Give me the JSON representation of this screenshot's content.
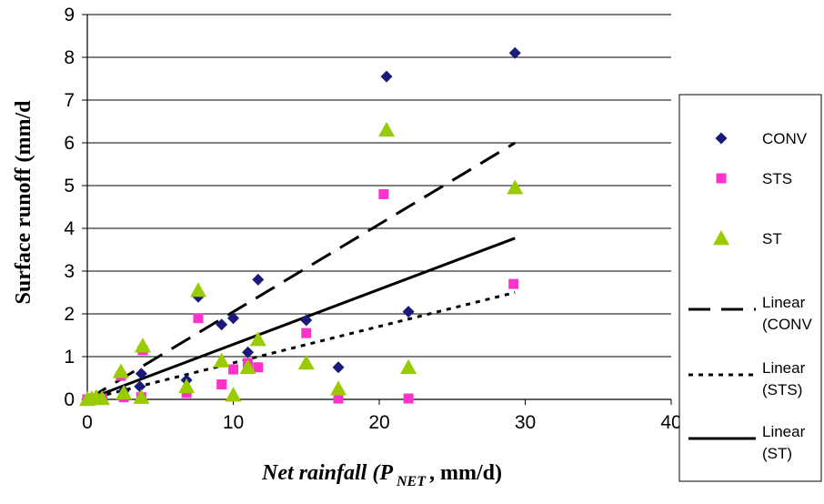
{
  "chart_data": {
    "type": "scatter",
    "title": "",
    "xlabel": {
      "main": "Net rainfall (P",
      "sub": "NET",
      "rest": ", mm/d)"
    },
    "ylabel": "Surface runoff (mm/d",
    "xlim": [
      0,
      40
    ],
    "ylim": [
      0,
      9
    ],
    "xticks": [
      0,
      10,
      20,
      30,
      40
    ],
    "yticks": [
      0,
      1,
      2,
      3,
      4,
      5,
      6,
      7,
      8,
      9
    ],
    "grid": "horizontal",
    "legend_position": "right",
    "series": [
      {
        "name": "CONV",
        "marker": "diamond",
        "color": "#1a1a7a",
        "points": [
          [
            0,
            0
          ],
          [
            0.3,
            0.02
          ],
          [
            0.6,
            0.05
          ],
          [
            1,
            0.05
          ],
          [
            2.3,
            0.6
          ],
          [
            2.5,
            0.2
          ],
          [
            3.6,
            0.3
          ],
          [
            3.7,
            0.6
          ],
          [
            3.8,
            1.2
          ],
          [
            6.8,
            0.45
          ],
          [
            7.6,
            2.4
          ],
          [
            9.2,
            1.75
          ],
          [
            10,
            1.9
          ],
          [
            11,
            1.1
          ],
          [
            11.7,
            2.8
          ],
          [
            15,
            1.85
          ],
          [
            17.2,
            0.75
          ],
          [
            20.5,
            7.55
          ],
          [
            22,
            2.05
          ],
          [
            29.3,
            8.1
          ]
        ]
      },
      {
        "name": "STS",
        "marker": "square",
        "color": "#ff33cc",
        "points": [
          [
            0,
            0
          ],
          [
            0.3,
            0.02
          ],
          [
            0.6,
            0.02
          ],
          [
            1,
            0.02
          ],
          [
            2.3,
            0.55
          ],
          [
            2.5,
            0.05
          ],
          [
            3.7,
            0.05
          ],
          [
            3.8,
            1.15
          ],
          [
            6.8,
            0.15
          ],
          [
            7.6,
            1.9
          ],
          [
            9.2,
            0.35
          ],
          [
            10,
            0.7
          ],
          [
            11,
            0.85
          ],
          [
            11.7,
            0.75
          ],
          [
            15,
            1.55
          ],
          [
            17.2,
            0.02
          ],
          [
            20.3,
            4.8
          ],
          [
            22,
            0.02
          ],
          [
            29.2,
            2.7
          ]
        ]
      },
      {
        "name": "ST",
        "marker": "triangle",
        "color": "#99cc00",
        "points": [
          [
            0,
            0
          ],
          [
            0.3,
            0.02
          ],
          [
            0.6,
            0.05
          ],
          [
            1,
            0.02
          ],
          [
            2.3,
            0.65
          ],
          [
            2.5,
            0.15
          ],
          [
            3.7,
            0.05
          ],
          [
            3.8,
            1.25
          ],
          [
            6.8,
            0.3
          ],
          [
            7.6,
            2.55
          ],
          [
            9.2,
            0.9
          ],
          [
            10,
            0.1
          ],
          [
            11,
            0.75
          ],
          [
            11.7,
            1.4
          ],
          [
            15,
            0.85
          ],
          [
            17.2,
            0.25
          ],
          [
            20.5,
            6.3
          ],
          [
            22,
            0.75
          ],
          [
            29.3,
            4.95
          ]
        ]
      }
    ],
    "trendlines": [
      {
        "name": "Linear (CONV)",
        "series": "CONV",
        "style": "long-dash",
        "x": [
          0,
          29.3
        ],
        "y": [
          0,
          6.0
        ]
      },
      {
        "name": "Linear (STS)",
        "series": "STS",
        "style": "short-dash",
        "x": [
          0,
          29.3
        ],
        "y": [
          0,
          2.5
        ]
      },
      {
        "name": "Linear (ST)",
        "series": "ST",
        "style": "solid",
        "x": [
          0,
          29.3
        ],
        "y": [
          0,
          3.77
        ]
      }
    ],
    "legend": [
      {
        "marker": "diamond",
        "color": "#1a1a7a",
        "label": [
          "CONV"
        ]
      },
      {
        "marker": "square",
        "color": "#ff33cc",
        "label": [
          "STS"
        ]
      },
      {
        "marker": "triangle",
        "color": "#99cc00",
        "label": [
          "ST"
        ]
      },
      {
        "marker": "long-dash",
        "color": "#000000",
        "label": [
          "Linear",
          "(CONV"
        ]
      },
      {
        "marker": "short-dash",
        "color": "#000000",
        "label": [
          "Linear",
          "(STS)"
        ]
      },
      {
        "marker": "solid",
        "color": "#000000",
        "label": [
          "Linear",
          "(ST)"
        ]
      }
    ]
  }
}
